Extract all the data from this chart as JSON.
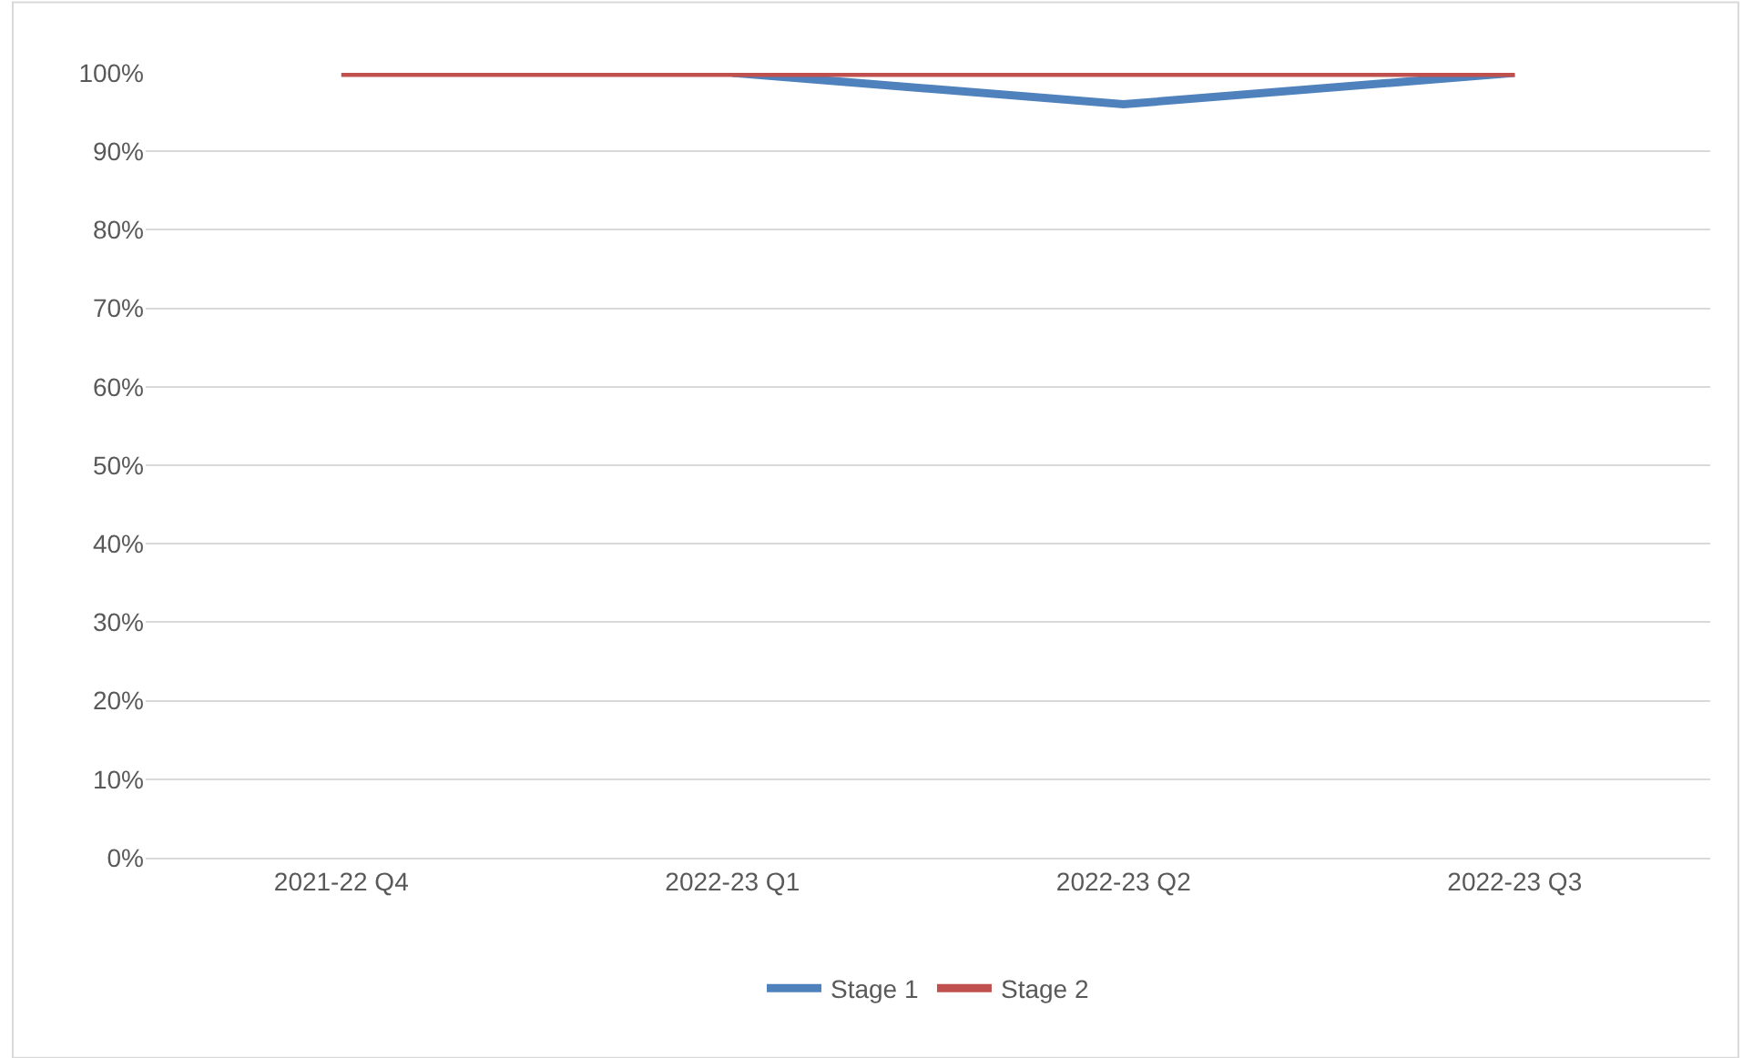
{
  "chart_data": {
    "type": "line",
    "categories": [
      "2021-22 Q4",
      "2022-23 Q1",
      "2022-23 Q2",
      "2022-23 Q3"
    ],
    "series": [
      {
        "name": "Stage 1",
        "color": "#4f81bd",
        "values": [
          null,
          100,
          96,
          100
        ]
      },
      {
        "name": "Stage 2",
        "color": "#c0504d",
        "values": [
          100,
          100,
          100,
          100
        ]
      }
    ],
    "ylim": [
      0,
      100
    ],
    "yticks": [
      {
        "value": 0,
        "label": "0%"
      },
      {
        "value": 10,
        "label": "10%"
      },
      {
        "value": 20,
        "label": "20%"
      },
      {
        "value": 30,
        "label": "30%"
      },
      {
        "value": 40,
        "label": "40%"
      },
      {
        "value": 50,
        "label": "50%"
      },
      {
        "value": 60,
        "label": "60%"
      },
      {
        "value": 70,
        "label": "70%"
      },
      {
        "value": 80,
        "label": "80%"
      },
      {
        "value": 90,
        "label": "90%"
      },
      {
        "value": 100,
        "label": "100%"
      }
    ],
    "grid": "y",
    "legend": "bottom",
    "marker": "none",
    "line_style": "solid"
  }
}
